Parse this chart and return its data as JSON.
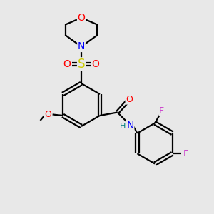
{
  "background_color": "#e8e8e8",
  "bond_color": "#000000",
  "atom_colors": {
    "O": "#ff0000",
    "N": "#0000ff",
    "S": "#cccc00",
    "F": "#cc44cc",
    "H": "#008080",
    "C": "#000000"
  },
  "line_width": 1.6,
  "font_size": 10,
  "lw_ring": 1.6
}
